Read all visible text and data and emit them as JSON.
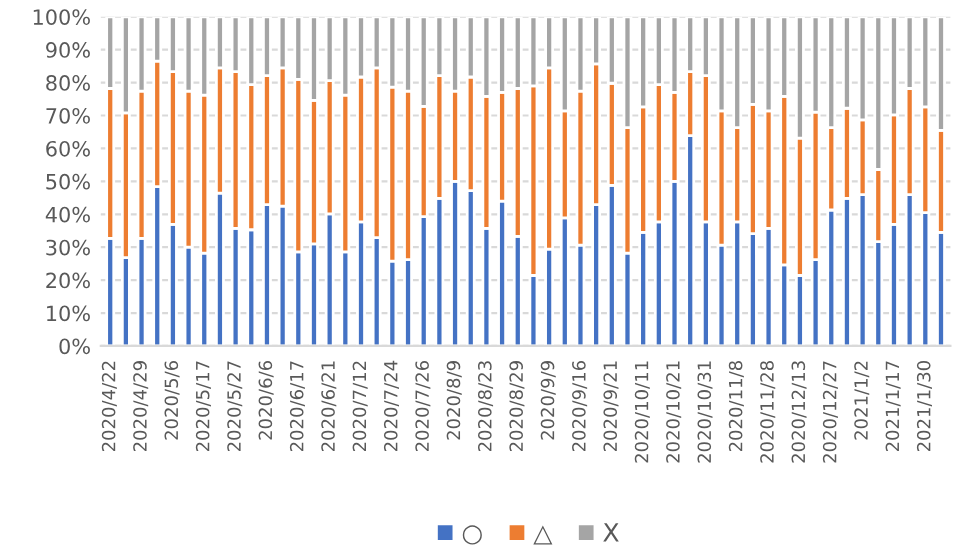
{
  "chart_data": {
    "type": "bar",
    "stacked": true,
    "categories": [
      "2020/4/22",
      null,
      "2020/4/29",
      null,
      "2020/5/6",
      null,
      "2020/5/17",
      null,
      "2020/5/27",
      null,
      "2020/6/6",
      null,
      "2020/6/17",
      null,
      "2020/6/21",
      null,
      "2020/7/12",
      null,
      "2020/7/24",
      null,
      "2020/7/26",
      null,
      "2020/8/9",
      null,
      "2020/8/23",
      null,
      "2020/8/29",
      null,
      "2020/9/9",
      null,
      "2020/9/16",
      null,
      "2020/9/21",
      null,
      "2020/10/11",
      null,
      "2020/10/21",
      null,
      "2020/10/31",
      null,
      "2020/11/8",
      null,
      "2020/11/28",
      null,
      "2020/12/13",
      null,
      "2020/12/27",
      null,
      "2021/1/2",
      null,
      "2021/1/17",
      null,
      "2021/1/30",
      null
    ],
    "series": [
      {
        "name": "○",
        "color": "#4472c4",
        "values": [
          32.7,
          26.8,
          32.7,
          48.4,
          36.9,
          30.0,
          28.2,
          46.4,
          35.7,
          35.3,
          42.9,
          42.5,
          28.6,
          31.0,
          40.1,
          28.6,
          37.7,
          32.9,
          25.8,
          26.2,
          39.3,
          44.8,
          50.0,
          47.2,
          35.7,
          44.0,
          33.3,
          21.4,
          29.4,
          38.9,
          30.6,
          42.9,
          48.8,
          28.2,
          34.5,
          37.7,
          50.0,
          63.9,
          37.7,
          30.6,
          37.7,
          34.1,
          35.7,
          24.6,
          21.4,
          26.2,
          41.3,
          44.8,
          46.0,
          31.7,
          36.9,
          46.0,
          40.5,
          34.5
        ]
      },
      {
        "name": "△",
        "color": "#ed7d31",
        "values": [
          45.5,
          44.0,
          44.7,
          38.1,
          46.4,
          47.4,
          48.0,
          38.1,
          47.6,
          44.1,
          39.2,
          42.0,
          52.4,
          43.6,
          40.5,
          47.6,
          44.0,
          51.6,
          52.8,
          51.2,
          33.5,
          37.3,
          27.4,
          34.5,
          40.1,
          33.0,
          44.9,
          57.6,
          55.1,
          32.5,
          46.8,
          42.8,
          31.0,
          38.1,
          38.1,
          41.7,
          27.0,
          19.4,
          44.4,
          40.8,
          28.6,
          39.3,
          35.7,
          51.2,
          41.7,
          44.8,
          25.0,
          27.4,
          22.7,
          21.9,
          33.3,
          32.2,
          32.1,
          31.0
        ]
      },
      {
        "name": "X",
        "color": "#a5a5a5",
        "values": [
          21.8,
          29.2,
          22.6,
          13.5,
          16.7,
          22.6,
          23.8,
          15.5,
          16.7,
          20.6,
          17.9,
          15.5,
          19.0,
          25.4,
          19.4,
          23.8,
          18.3,
          15.5,
          21.4,
          22.6,
          27.2,
          17.9,
          22.6,
          18.3,
          24.2,
          23.0,
          21.8,
          21.0,
          15.5,
          28.6,
          22.6,
          14.3,
          20.2,
          33.7,
          27.4,
          20.6,
          23.0,
          16.7,
          17.9,
          28.6,
          33.7,
          26.6,
          28.6,
          24.2,
          36.9,
          29.0,
          33.7,
          27.8,
          31.3,
          46.4,
          29.8,
          21.8,
          27.4,
          34.5
        ]
      }
    ],
    "ylim": [
      0,
      100
    ],
    "yticks": [
      {
        "value": 0,
        "label": "0%"
      },
      {
        "value": 10,
        "label": "10%"
      },
      {
        "value": 20,
        "label": "20%"
      },
      {
        "value": 30,
        "label": "30%"
      },
      {
        "value": 40,
        "label": "40%"
      },
      {
        "value": 50,
        "label": "50%"
      },
      {
        "value": 60,
        "label": "60%"
      },
      {
        "value": 70,
        "label": "70%"
      },
      {
        "value": 80,
        "label": "80%"
      },
      {
        "value": 90,
        "label": "90%"
      },
      {
        "value": 100,
        "label": "100%"
      }
    ],
    "grid": "y",
    "legend": "bottom"
  }
}
